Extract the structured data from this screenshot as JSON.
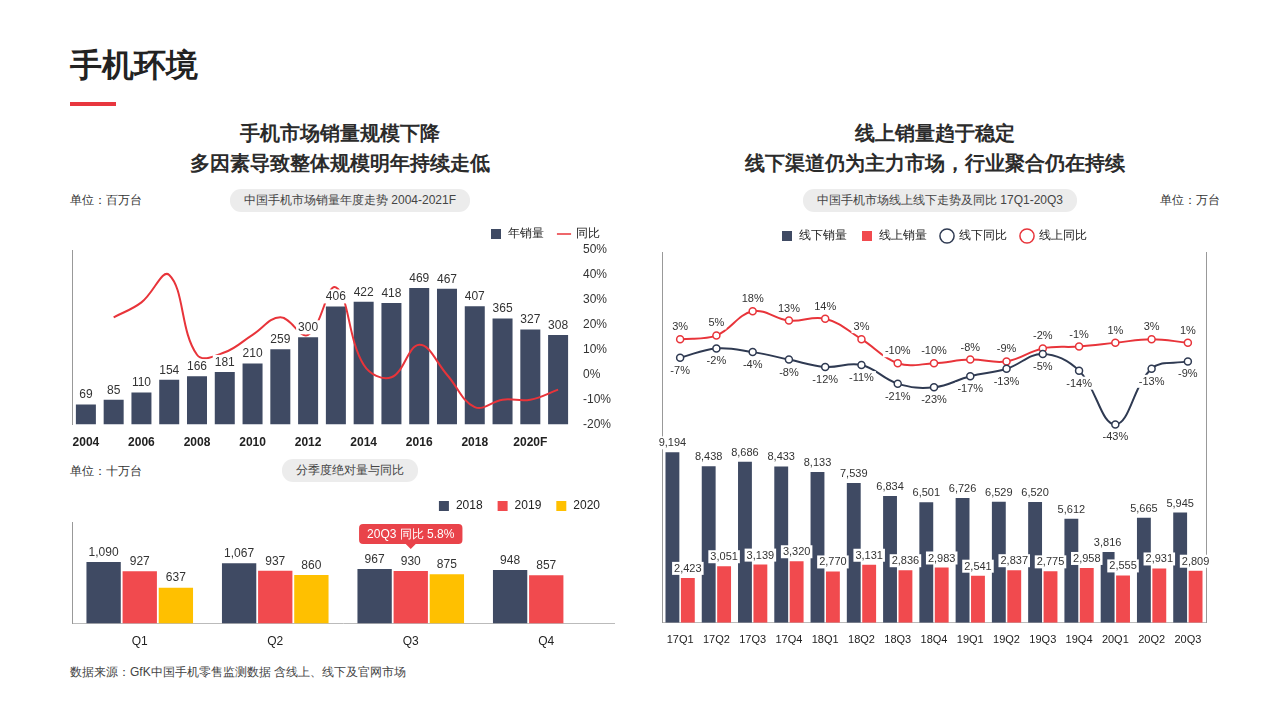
{
  "page": {
    "title": "手机环境",
    "left_headline": [
      "手机市场销量规模下降",
      "多因素导致整体规模明年持续走低"
    ],
    "right_headline": [
      "线上销量趋于稳定",
      "线下渠道仍为主力市场，行业聚合仍在持续"
    ],
    "source": "数据来源：GfK中国手机零售监测数据 含线上、线下及官网市场"
  },
  "chart_data": [
    {
      "type": "bar",
      "title": "中国手机市场销量年度走势 2004-2021F",
      "unit_label": "单位：百万台",
      "categories": [
        "2004",
        null,
        "2006",
        null,
        "2008",
        null,
        "2010",
        null,
        "2012",
        null,
        "2014",
        null,
        "2016",
        null,
        "2018",
        null,
        "2020F",
        null
      ],
      "series": [
        {
          "name": "年销量",
          "type": "bar",
          "color": "#3f4a63",
          "data_labels": true,
          "values": [
            69,
            85,
            110,
            154,
            166,
            181,
            210,
            259,
            300,
            406,
            422,
            418,
            469,
            467,
            407,
            365,
            327,
            308
          ]
        },
        {
          "name": "同比",
          "type": "line",
          "axis": "y2",
          "color": "#e8343a",
          "marker": "none",
          "line_style": "solid",
          "values": [
            null,
            23,
            29,
            40,
            8,
            9,
            16,
            23,
            16,
            35,
            4,
            -1,
            12,
            0,
            -13,
            -10,
            -10,
            -6
          ]
        }
      ],
      "ylim": [
        0,
        600
      ],
      "y2lim": [
        -20,
        50
      ],
      "y2ticks": [
        {
          "value": -20,
          "label": "-20%"
        },
        {
          "value": -10,
          "label": "-10%"
        },
        {
          "value": 0,
          "label": "0%"
        },
        {
          "value": 10,
          "label": "10%"
        },
        {
          "value": 20,
          "label": "20%"
        },
        {
          "value": 30,
          "label": "30%"
        },
        {
          "value": 40,
          "label": "40%"
        },
        {
          "value": 50,
          "label": "50%"
        }
      ],
      "grid": false,
      "legend": "top-right"
    },
    {
      "type": "bar",
      "title": "分季度绝对量与同比",
      "unit_label": "单位：十万台",
      "categories": [
        "Q1",
        "Q2",
        "Q3",
        "Q4"
      ],
      "series": [
        {
          "name": "2018",
          "color": "#3f4a63",
          "data_labels": true,
          "values": [
            1090,
            1067,
            967,
            948
          ],
          "value_labels": [
            "1,090",
            "1,067",
            "967",
            "948"
          ]
        },
        {
          "name": "2019",
          "color": "#f14a4e",
          "data_labels": true,
          "values": [
            927,
            937,
            930,
            857
          ],
          "value_labels": [
            "927",
            "937",
            "930",
            "857"
          ]
        },
        {
          "name": "2020",
          "color": "#ffc000",
          "data_labels": true,
          "values": [
            637,
            860,
            875,
            null
          ],
          "value_labels": [
            "637",
            "860",
            "875",
            null
          ]
        }
      ],
      "annotations": [
        {
          "text": "20Q3 同比 5.8%",
          "category": "Q3",
          "color": "#e9434a"
        }
      ],
      "ylim": [
        0,
        1800
      ],
      "grid": false,
      "legend": "top-right"
    },
    {
      "type": "bar",
      "title": "中国手机市场线上线下走势及同比 17Q1-20Q3",
      "unit_label": "单位：万台",
      "categories": [
        "17Q1",
        "17Q2",
        "17Q3",
        "17Q4",
        "18Q1",
        "18Q2",
        "18Q3",
        "18Q4",
        "19Q1",
        "19Q2",
        "19Q3",
        "19Q4",
        "20Q1",
        "20Q2",
        "20Q3"
      ],
      "series": [
        {
          "name": "线下销量",
          "type": "bar",
          "color": "#3f4a63",
          "data_labels": true,
          "values": [
            9194,
            8438,
            8686,
            8433,
            8133,
            7539,
            6834,
            6501,
            6726,
            6529,
            6520,
            5612,
            3816,
            5665,
            5945
          ],
          "value_labels": [
            "9,194",
            "8,438",
            "8,686",
            "8,433",
            "8,133",
            "7,539",
            "6,834",
            "6,501",
            "6,726",
            "6,529",
            "6,520",
            "5,612",
            "3,816",
            "5,665",
            "5,945"
          ]
        },
        {
          "name": "线上销量",
          "type": "bar",
          "color": "#f14a4e",
          "data_labels": true,
          "values": [
            2423,
            3051,
            3139,
            3320,
            2770,
            3131,
            2836,
            2983,
            2541,
            2837,
            2775,
            2958,
            2555,
            2931,
            2809
          ],
          "value_labels": [
            "2,423",
            "3,051",
            "3,139",
            "3,320",
            "2,770",
            "3,131",
            "2,836",
            "2,983",
            "2,541",
            "2,837",
            "2,775",
            "2,958",
            "2,555",
            "2,931",
            "2,809"
          ]
        },
        {
          "name": "线下同比",
          "type": "line",
          "axis": "y2",
          "color": "#2f3a52",
          "marker": "circle",
          "line_style": "solid",
          "data_labels": true,
          "values": [
            -7,
            -2,
            -4,
            -8,
            -12,
            -11,
            -21,
            -23,
            -17,
            -13,
            -5,
            -14,
            -43,
            -13,
            -9
          ],
          "value_labels": [
            "-7%",
            "-2%",
            "-4%",
            "-8%",
            "-12%",
            "-11%",
            "-21%",
            "-23%",
            "-17%",
            "-13%",
            "-5%",
            "-14%",
            "-43%",
            "-13%",
            "-9%"
          ]
        },
        {
          "name": "线上同比",
          "type": "line",
          "axis": "y2",
          "color": "#e8343a",
          "marker": "circle",
          "line_style": "solid",
          "data_labels": true,
          "values": [
            3,
            5,
            18,
            13,
            14,
            3,
            -10,
            -10,
            -8,
            -9,
            -2,
            -1,
            1,
            3,
            1
          ],
          "value_labels": [
            "3%",
            "5%",
            "18%",
            "13%",
            "14%",
            "3%",
            "-10%",
            "-10%",
            "-8%",
            "-9%",
            "-2%",
            "-1%",
            "1%",
            "3%",
            "1%"
          ]
        }
      ],
      "ylim": [
        0,
        20000
      ],
      "y2lim": [
        -150,
        50
      ],
      "grid": false,
      "legend": "top"
    }
  ]
}
